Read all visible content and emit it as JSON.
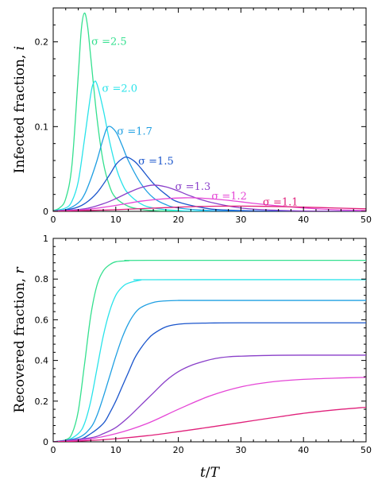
{
  "chart_data": [
    {
      "type": "line",
      "panel": "top",
      "title": "",
      "xlabel": "",
      "ylabel": "Infected fraction, i",
      "ylabel_main": "Infected fraction, ",
      "ylabel_var": "i",
      "xlim": [
        0,
        50
      ],
      "ylim": [
        0,
        0.24
      ],
      "x_ticks": [
        0,
        10,
        20,
        30,
        40,
        50
      ],
      "x_tick_labels": [
        "0",
        "10",
        "20",
        "30",
        "40",
        "50"
      ],
      "y_ticks": [
        0,
        0.1,
        0.2
      ],
      "y_tick_labels": [
        "0",
        "0.1",
        "0.2"
      ],
      "grid": false,
      "series": [
        {
          "name": "σ = 2.5",
          "color": "#34e08f",
          "x": [
            0,
            1,
            2,
            3,
            4,
            4.5,
            5,
            5.5,
            6,
            7,
            8,
            9,
            10,
            12,
            14,
            16,
            20,
            25,
            50
          ],
          "values": [
            0.001,
            0.004,
            0.015,
            0.055,
            0.16,
            0.215,
            0.234,
            0.218,
            0.182,
            0.11,
            0.058,
            0.03,
            0.016,
            0.006,
            0.0025,
            0.001,
            0.0003,
            0.0001,
            0
          ]
        },
        {
          "name": "σ = 2.0",
          "color": "#29e3ea",
          "x": [
            0,
            2,
            3,
            4,
            5,
            6,
            6.5,
            7,
            8,
            9,
            10,
            11,
            12,
            14,
            16,
            20,
            25,
            50
          ],
          "values": [
            0.0005,
            0.004,
            0.012,
            0.035,
            0.085,
            0.138,
            0.152,
            0.15,
            0.12,
            0.083,
            0.053,
            0.033,
            0.021,
            0.009,
            0.004,
            0.001,
            0.0003,
            0
          ]
        },
        {
          "name": "σ = 1.7",
          "color": "#1f9fe2",
          "x": [
            0,
            2,
            4,
            5,
            6,
            7,
            8,
            8.8,
            10,
            11,
            12,
            14,
            16,
            18,
            20,
            25,
            30,
            50
          ],
          "values": [
            0.0003,
            0.002,
            0.01,
            0.02,
            0.038,
            0.06,
            0.086,
            0.1,
            0.094,
            0.078,
            0.06,
            0.033,
            0.016,
            0.008,
            0.004,
            0.001,
            0.0003,
            0
          ]
        },
        {
          "name": "σ = 1.5",
          "color": "#1a55cc",
          "x": [
            0,
            3,
            5,
            7,
            9,
            10,
            11,
            11.8,
            13,
            14,
            16,
            18,
            20,
            25,
            30,
            35,
            50
          ],
          "values": [
            0.0002,
            0.003,
            0.009,
            0.022,
            0.043,
            0.055,
            0.062,
            0.064,
            0.059,
            0.051,
            0.033,
            0.02,
            0.011,
            0.003,
            0.001,
            0.0003,
            0
          ]
        },
        {
          "name": "σ = 1.3",
          "color": "#8a3fc9",
          "x": [
            0,
            5,
            8,
            10,
            12,
            14,
            16,
            18,
            20,
            22,
            25,
            30,
            35,
            40,
            50
          ],
          "values": [
            0.0002,
            0.003,
            0.009,
            0.015,
            0.022,
            0.028,
            0.031,
            0.029,
            0.024,
            0.018,
            0.011,
            0.004,
            0.0015,
            0.0005,
            0
          ]
        },
        {
          "name": "σ = 1.2",
          "color": "#e546d6",
          "x": [
            0,
            5,
            10,
            14,
            18,
            21,
            24,
            28,
            32,
            36,
            40,
            45,
            50
          ],
          "values": [
            0.0002,
            0.002,
            0.007,
            0.012,
            0.015,
            0.016,
            0.0155,
            0.013,
            0.0095,
            0.0065,
            0.004,
            0.002,
            0.001
          ]
        },
        {
          "name": "σ = 1.1",
          "color": "#e0207a",
          "x": [
            0,
            5,
            10,
            15,
            20,
            25,
            30,
            35,
            40,
            45,
            50
          ],
          "values": [
            0.0002,
            0.001,
            0.002,
            0.0035,
            0.005,
            0.006,
            0.0062,
            0.0058,
            0.005,
            0.004,
            0.003
          ]
        }
      ],
      "annotations": [
        {
          "text": "σ =2.5",
          "series": 0,
          "x": 6.1,
          "y": 0.2
        },
        {
          "text": "σ =2.0",
          "series": 1,
          "x": 7.8,
          "y": 0.145
        },
        {
          "text": "σ =1.7",
          "series": 2,
          "x": 10.2,
          "y": 0.094
        },
        {
          "text": "σ =1.5",
          "series": 3,
          "x": 13.6,
          "y": 0.059
        },
        {
          "text": "σ =1.3",
          "series": 4,
          "x": 19.5,
          "y": 0.029
        },
        {
          "text": "σ =1.2",
          "series": 5,
          "x": 25.3,
          "y": 0.018
        },
        {
          "text": "σ =1.1",
          "series": 6,
          "x": 33.5,
          "y": 0.011
        }
      ]
    },
    {
      "type": "line",
      "panel": "bottom",
      "title": "",
      "xlabel": "t/T",
      "xlabel_parts": [
        "t",
        "/",
        "T"
      ],
      "ylabel": "Recovered fraction, r",
      "ylabel_main": "Recovered fraction, ",
      "ylabel_var": "r",
      "xlim": [
        0,
        50
      ],
      "ylim": [
        0,
        1
      ],
      "x_ticks": [
        0,
        10,
        20,
        30,
        40,
        50
      ],
      "x_tick_labels": [
        "0",
        "10",
        "20",
        "30",
        "40",
        "50"
      ],
      "y_ticks": [
        0,
        0.2,
        0.4,
        0.6,
        0.8,
        1
      ],
      "y_tick_labels": [
        "0",
        "0.2",
        "0.4",
        "0.6",
        "0.8",
        "1"
      ],
      "grid": false,
      "series": [
        {
          "name": "σ = 2.5",
          "color": "#34e08f",
          "x": [
            0,
            2,
            3,
            4,
            5,
            6,
            7,
            8,
            9,
            10,
            12,
            15,
            50
          ],
          "values": [
            0,
            0.01,
            0.04,
            0.15,
            0.38,
            0.62,
            0.77,
            0.84,
            0.87,
            0.885,
            0.89,
            0.892,
            0.892
          ]
        },
        {
          "name": "σ = 2.0",
          "color": "#29e3ea",
          "x": [
            0,
            2,
            4,
            5,
            6,
            7,
            8,
            9,
            10,
            11,
            12,
            14,
            16,
            50
          ],
          "values": [
            0,
            0.005,
            0.04,
            0.09,
            0.2,
            0.36,
            0.52,
            0.64,
            0.72,
            0.76,
            0.78,
            0.795,
            0.797,
            0.797
          ]
        },
        {
          "name": "σ = 1.7",
          "color": "#1f9fe2",
          "x": [
            0,
            4,
            6,
            7,
            8,
            9,
            10,
            11,
            12,
            13,
            14,
            16,
            18,
            20,
            25,
            50
          ],
          "values": [
            0,
            0.02,
            0.07,
            0.13,
            0.22,
            0.32,
            0.42,
            0.51,
            0.58,
            0.63,
            0.66,
            0.685,
            0.693,
            0.695,
            0.695,
            0.695
          ]
        },
        {
          "name": "σ = 1.5",
          "color": "#1a55cc",
          "x": [
            0,
            4,
            6,
            8,
            9,
            10,
            11,
            12,
            13,
            14,
            15,
            16,
            18,
            20,
            22,
            25,
            30,
            50
          ],
          "values": [
            0,
            0.01,
            0.04,
            0.09,
            0.14,
            0.2,
            0.27,
            0.34,
            0.41,
            0.46,
            0.5,
            0.53,
            0.565,
            0.578,
            0.582,
            0.584,
            0.585,
            0.585
          ]
        },
        {
          "name": "σ = 1.3",
          "color": "#8a3fc9",
          "x": [
            0,
            6,
            8,
            10,
            12,
            14,
            16,
            18,
            20,
            22,
            24,
            26,
            28,
            30,
            35,
            40,
            50
          ],
          "values": [
            0,
            0.02,
            0.04,
            0.07,
            0.12,
            0.18,
            0.24,
            0.3,
            0.345,
            0.375,
            0.395,
            0.41,
            0.418,
            0.421,
            0.425,
            0.426,
            0.426
          ]
        },
        {
          "name": "σ = 1.2",
          "color": "#e546d6",
          "x": [
            0,
            5,
            10,
            15,
            20,
            25,
            30,
            35,
            40,
            45,
            50
          ],
          "values": [
            0,
            0.01,
            0.04,
            0.09,
            0.16,
            0.225,
            0.27,
            0.295,
            0.307,
            0.313,
            0.317
          ]
        },
        {
          "name": "σ = 1.1",
          "color": "#e0207a",
          "x": [
            0,
            5,
            10,
            15,
            20,
            25,
            30,
            35,
            40,
            45,
            50
          ],
          "values": [
            0,
            0.005,
            0.015,
            0.03,
            0.05,
            0.072,
            0.095,
            0.118,
            0.14,
            0.157,
            0.17
          ]
        }
      ]
    }
  ]
}
